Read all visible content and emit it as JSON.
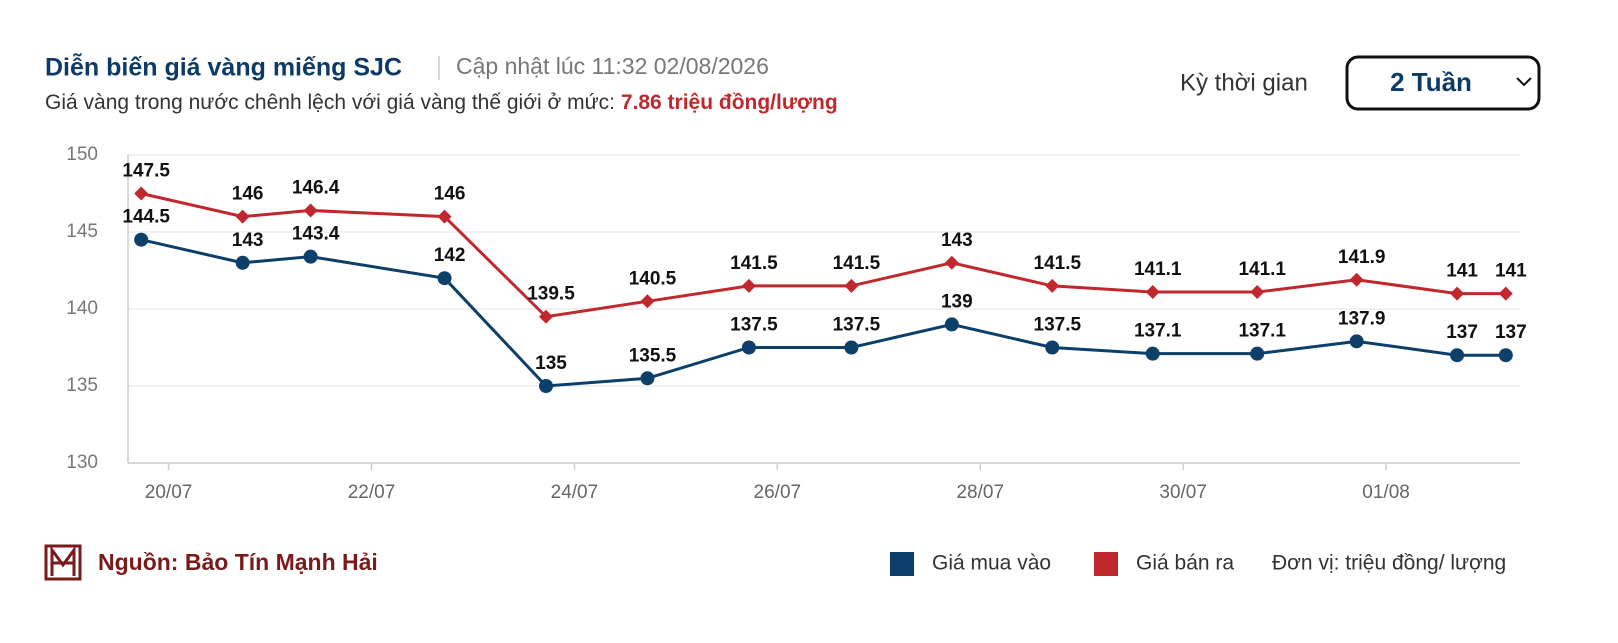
{
  "chart_data": {
    "type": "line",
    "title": "Diễn biến giá vàng miếng SJC",
    "subtitle": "Cập nhật lúc 11:32 02/08/2026",
    "note": "Giá vàng trong nước chênh lệch với giá vàng thế giới ở mức:",
    "note_highlight": "7.86 triệu đồng/lượng",
    "x": [
      19.73,
      20.73,
      21.4,
      22.72,
      23.72,
      24.72,
      25.72,
      26.73,
      27.72,
      28.71,
      29.7,
      30.73,
      31.71,
      32.7,
      33.18
    ],
    "xlim": [
      19.6,
      33.32
    ],
    "xticks": [
      {
        "value": 20,
        "label": "20/07"
      },
      {
        "value": 22,
        "label": "22/07"
      },
      {
        "value": 24,
        "label": "24/07"
      },
      {
        "value": 26,
        "label": "26/07"
      },
      {
        "value": 28,
        "label": "28/07"
      },
      {
        "value": 30,
        "label": "30/07"
      },
      {
        "value": 32,
        "label": "01/08"
      }
    ],
    "ylim": [
      130,
      150
    ],
    "yticks": [
      130,
      135,
      140,
      145,
      150
    ],
    "grid": true,
    "series": [
      {
        "name": "Giá mua vào",
        "color": "#0d3f6b",
        "marker": "circle",
        "values": [
          144.5,
          143,
          143.4,
          142,
          135,
          135.5,
          137.5,
          137.5,
          139,
          137.5,
          137.1,
          137.1,
          137.9,
          137,
          137
        ]
      },
      {
        "name": "Giá bán ra",
        "color": "#c0282d",
        "marker": "diamond",
        "values": [
          147.5,
          146,
          146.4,
          146,
          139.5,
          140.5,
          141.5,
          141.5,
          143,
          141.5,
          141.1,
          141.1,
          141.9,
          141,
          141
        ]
      }
    ]
  },
  "controls": {
    "label": "Kỳ thời gian",
    "selected": "2 Tuần"
  },
  "footer": {
    "source": "Nguồn: Bảo Tín Mạnh Hải",
    "unit": "Đơn vị: triệu đồng/ lượng"
  }
}
